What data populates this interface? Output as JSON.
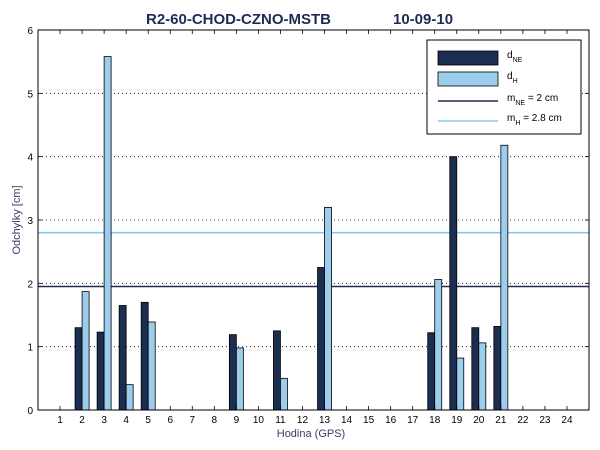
{
  "chart_data": {
    "type": "bar",
    "title": "R2-60-CHOD-CZNO-MSTB",
    "title_date": "10-09-10",
    "xlabel": "Hodina (GPS)",
    "ylabel": "Odchylky [cm]",
    "ylim": [
      0,
      6
    ],
    "yticks": [
      "0",
      "1",
      "2",
      "3",
      "4",
      "5",
      "6"
    ],
    "categories": [
      "1",
      "2",
      "3",
      "4",
      "5",
      "6",
      "7",
      "8",
      "9",
      "10",
      "11",
      "12",
      "13",
      "14",
      "15",
      "16",
      "17",
      "18",
      "19",
      "20",
      "21",
      "22",
      "23",
      "24"
    ],
    "grid": "horizontal dotted",
    "legend_position": "top-right",
    "series": [
      {
        "name_main": "d",
        "name_sub": "NE",
        "color": "#1c2d52",
        "values": [
          null,
          1.3,
          1.23,
          1.65,
          1.7,
          null,
          null,
          null,
          1.19,
          null,
          1.25,
          null,
          2.25,
          null,
          null,
          null,
          null,
          1.22,
          4.0,
          1.3,
          1.32,
          null,
          null,
          null
        ]
      },
      {
        "name_main": "d",
        "name_sub": "H",
        "color": "#9dcdec",
        "values": [
          null,
          1.87,
          5.58,
          0.4,
          1.39,
          null,
          null,
          null,
          0.98,
          null,
          0.5,
          null,
          3.2,
          null,
          null,
          null,
          null,
          2.06,
          0.82,
          1.06,
          4.18,
          null,
          null,
          null
        ]
      }
    ],
    "reference_lines": [
      {
        "label_main": "m",
        "label_sub": "NE",
        "label_rest": " = 2 cm",
        "value": 1.95,
        "color": "#1c2d52"
      },
      {
        "label_main": "m",
        "label_sub": "H",
        "label_rest": " = 2.8 cm",
        "value": 2.8,
        "color": "#87c8ec"
      }
    ]
  }
}
